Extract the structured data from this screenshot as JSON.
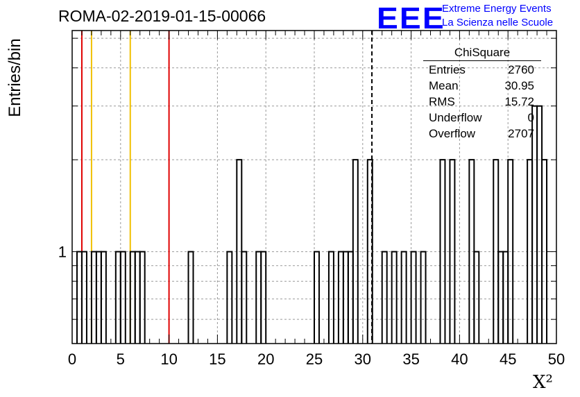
{
  "chart_data": {
    "type": "histogram",
    "title": "ROMA-02-2019-01-15-00066",
    "xlabel": "X²",
    "ylabel": "Entries/bin",
    "xlim": [
      0,
      50
    ],
    "ylim": [
      0.5,
      5.3
    ],
    "yscale": "log",
    "grid": true,
    "x_ticks": [
      "0",
      "5",
      "10",
      "15",
      "20",
      "25",
      "30",
      "35",
      "40",
      "45",
      "50"
    ],
    "y_ticks": [
      "1"
    ],
    "bin_width": 0.5,
    "bins": [
      {
        "x": 0.5,
        "v": 1
      },
      {
        "x": 1.0,
        "v": 1
      },
      {
        "x": 2.0,
        "v": 1
      },
      {
        "x": 2.5,
        "v": 1
      },
      {
        "x": 3.0,
        "v": 1
      },
      {
        "x": 4.5,
        "v": 1
      },
      {
        "x": 5.0,
        "v": 1
      },
      {
        "x": 6.0,
        "v": 1
      },
      {
        "x": 6.5,
        "v": 1
      },
      {
        "x": 7.0,
        "v": 1
      },
      {
        "x": 12.0,
        "v": 1
      },
      {
        "x": 16.0,
        "v": 1
      },
      {
        "x": 17.0,
        "v": 2
      },
      {
        "x": 17.5,
        "v": 1
      },
      {
        "x": 19.0,
        "v": 1
      },
      {
        "x": 19.5,
        "v": 1
      },
      {
        "x": 25.0,
        "v": 1
      },
      {
        "x": 26.5,
        "v": 1
      },
      {
        "x": 27.5,
        "v": 1
      },
      {
        "x": 28.0,
        "v": 1
      },
      {
        "x": 28.5,
        "v": 1
      },
      {
        "x": 29.0,
        "v": 2
      },
      {
        "x": 30.5,
        "v": 2
      },
      {
        "x": 32.0,
        "v": 1
      },
      {
        "x": 33.0,
        "v": 1
      },
      {
        "x": 34.0,
        "v": 1
      },
      {
        "x": 35.0,
        "v": 1
      },
      {
        "x": 36.0,
        "v": 1
      },
      {
        "x": 38.0,
        "v": 2
      },
      {
        "x": 39.0,
        "v": 2
      },
      {
        "x": 41.0,
        "v": 2
      },
      {
        "x": 41.5,
        "v": 1
      },
      {
        "x": 43.5,
        "v": 2
      },
      {
        "x": 44.0,
        "v": 1
      },
      {
        "x": 44.5,
        "v": 1
      },
      {
        "x": 45.0,
        "v": 2
      },
      {
        "x": 47.0,
        "v": 2
      },
      {
        "x": 47.5,
        "v": 3
      },
      {
        "x": 48.0,
        "v": 3
      },
      {
        "x": 48.5,
        "v": 2
      }
    ],
    "reference_lines": [
      {
        "x": 1,
        "color": "#e00000",
        "style": "solid"
      },
      {
        "x": 2,
        "color": "#f0c000",
        "style": "solid"
      },
      {
        "x": 6,
        "color": "#f0c000",
        "style": "solid"
      },
      {
        "x": 10,
        "color": "#e00000",
        "style": "solid"
      },
      {
        "x": 30.95,
        "color": "#000000",
        "style": "dashed"
      }
    ]
  },
  "stats": {
    "header": "ChiSquare",
    "rows": [
      {
        "label": "Entries",
        "value": "2760"
      },
      {
        "label": "Mean",
        "value": "30.95"
      },
      {
        "label": "RMS",
        "value": "15.72"
      },
      {
        "label": "Underflow",
        "value": "0"
      },
      {
        "label": "Overflow",
        "value": "2707"
      }
    ]
  },
  "logo": {
    "text": "EEE",
    "line1": "Extreme Energy Events",
    "line2": "La Scienza nelle Scuole"
  }
}
